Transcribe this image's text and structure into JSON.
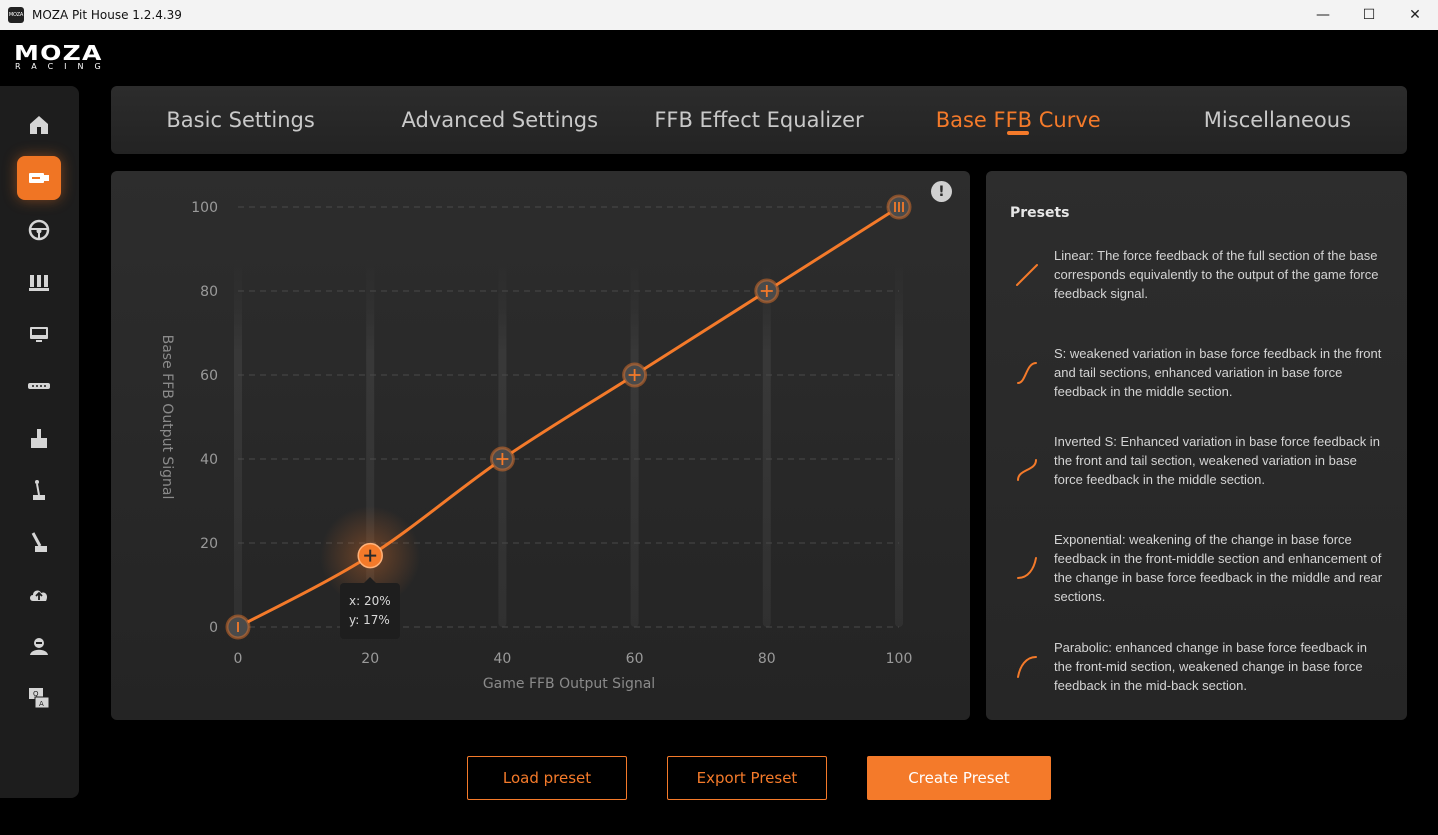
{
  "window": {
    "title": "MOZA Pit House 1.2.4.39",
    "icon_text": "MOZA",
    "controls": {
      "minimize": "—",
      "maximize": "☐",
      "close": "✕"
    }
  },
  "logo": {
    "main": "MOZA",
    "sub": "RACING"
  },
  "sidebar": {
    "items": [
      {
        "name": "home-icon",
        "active": false
      },
      {
        "name": "wheelbase-icon",
        "active": true
      },
      {
        "name": "steering-wheel-icon",
        "active": false
      },
      {
        "name": "pedals-icon",
        "active": false
      },
      {
        "name": "dashboard-icon",
        "active": false
      },
      {
        "name": "led-bar-icon",
        "active": false
      },
      {
        "name": "joystick-icon",
        "active": false
      },
      {
        "name": "shifter-icon",
        "active": false
      },
      {
        "name": "handbrake-icon",
        "active": false
      },
      {
        "name": "cloud-upload-icon",
        "active": false
      },
      {
        "name": "user-icon",
        "active": false
      },
      {
        "name": "qa-icon",
        "active": false
      }
    ]
  },
  "tabs": [
    {
      "label": "Basic Settings",
      "active": false
    },
    {
      "label": "Advanced Settings",
      "active": false
    },
    {
      "label": "FFB Effect Equalizer",
      "active": false
    },
    {
      "label": "Base FFB Curve",
      "active": true
    },
    {
      "label": "Miscellaneous",
      "active": false
    }
  ],
  "chart_data": {
    "type": "line",
    "xlabel": "Game FFB Output Signal",
    "ylabel": "Base FFB Output Signal",
    "x_ticks": [
      "0",
      "20",
      "40",
      "60",
      "80",
      "100"
    ],
    "y_ticks": [
      "0",
      "20",
      "40",
      "60",
      "80",
      "100"
    ],
    "xlim": [
      0,
      100
    ],
    "ylim": [
      0,
      100
    ],
    "grid": "horizontal-dashed",
    "line_color": "#f47a2a",
    "points": [
      {
        "x": 0,
        "y": 0
      },
      {
        "x": 20,
        "y": 17
      },
      {
        "x": 40,
        "y": 40
      },
      {
        "x": 60,
        "y": 60
      },
      {
        "x": 80,
        "y": 80
      },
      {
        "x": 100,
        "y": 100
      }
    ],
    "selected_index": 1,
    "tooltip": {
      "x_label": "x: 20%",
      "y_label": "y: 17%"
    }
  },
  "info_icon": "!",
  "presets": {
    "title": "Presets",
    "items": [
      {
        "shape": "linear",
        "text": "Linear: The force feedback of the full section of the base corresponds equivalently to the output of the game force feedback signal."
      },
      {
        "shape": "s",
        "text": "S: weakened variation in base force feedback in the front and tail sections, enhanced variation in base force feedback in the middle section."
      },
      {
        "shape": "inverted-s",
        "text": "Inverted S: Enhanced variation in base force feedback in the front and tail section, weakened variation in base force feedback in the middle section."
      },
      {
        "shape": "exponential",
        "text": "Exponential: weakening of the change in base force feedback in the front-middle section and enhancement of the change in base force feedback in the middle and rear sections."
      },
      {
        "shape": "parabolic",
        "text": "Parabolic: enhanced change in base force feedback in the front-mid section, weakened change in base force feedback in the mid-back section."
      }
    ]
  },
  "buttons": {
    "load": "Load preset",
    "export": "Export Preset",
    "create": "Create Preset"
  },
  "colors": {
    "accent": "#f47a2a",
    "panel": "#2a2a2a",
    "background": "#000000"
  }
}
